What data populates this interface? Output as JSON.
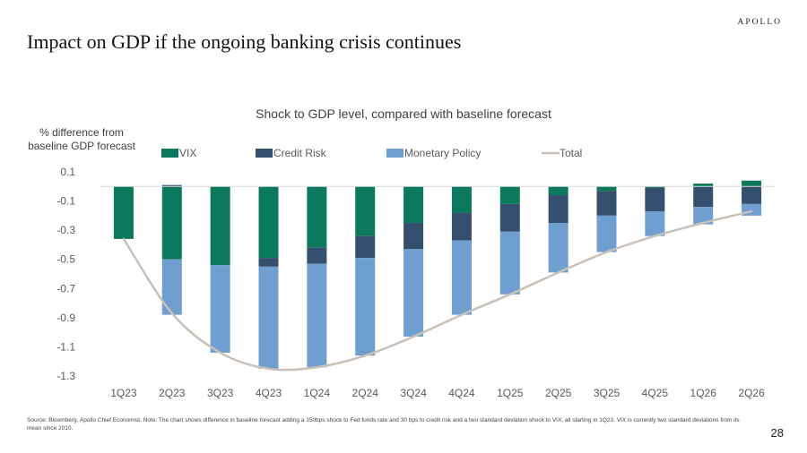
{
  "header": {
    "brand": "APOLLO",
    "title": "Impact on GDP if the ongoing banking crisis continues"
  },
  "footer": {
    "source": "Source: Bloomberg, Apollo Chief Economist. Note: The chart shows difference in baseline forecast adding a 150bps shock to Fed funds rate and 30 bps to credit risk and a two standard deviation shock to VIX, all starting in 1Q23. VIX is currently two standard deviations from its mean since 2010.",
    "page_number": "28"
  },
  "colors": {
    "vix": "#0b7a5c",
    "credit_risk": "#34506e",
    "monetary_policy": "#6f9fd1",
    "total": "#c9c0b7",
    "gridline": "#d9d9d9",
    "tick_text": "#595959"
  },
  "chart_data": {
    "type": "bar",
    "stacked": true,
    "title": "Shock to GDP level, compared with baseline forecast",
    "ylabel": "% difference from baseline GDP forecast",
    "xlabel": "",
    "ylim": [
      -1.3,
      0.1
    ],
    "yticks": [
      "0.1",
      "-0.1",
      "-0.3",
      "-0.5",
      "-0.7",
      "-0.9",
      "-1.1",
      "-1.3"
    ],
    "ytick_values": [
      0.1,
      -0.1,
      -0.3,
      -0.5,
      -0.7,
      -0.9,
      -1.1,
      -1.3
    ],
    "legend_position": "top",
    "grid": false,
    "categories": [
      "1Q23",
      "2Q23",
      "3Q23",
      "4Q23",
      "1Q24",
      "2Q24",
      "3Q24",
      "4Q24",
      "1Q25",
      "2Q25",
      "3Q25",
      "4Q25",
      "1Q26",
      "2Q26"
    ],
    "series": [
      {
        "name": "VIX",
        "kind": "bar",
        "values": [
          -0.36,
          -0.5,
          -0.54,
          -0.49,
          -0.42,
          -0.34,
          -0.25,
          -0.18,
          -0.12,
          -0.06,
          -0.03,
          -0.01,
          0.02,
          0.04
        ]
      },
      {
        "name": "Credit Risk",
        "kind": "bar",
        "values": [
          0.0,
          0.01,
          0.0,
          -0.06,
          -0.11,
          -0.15,
          -0.18,
          -0.19,
          -0.19,
          -0.19,
          -0.17,
          -0.16,
          -0.14,
          -0.12
        ]
      },
      {
        "name": "Monetary Policy",
        "kind": "bar",
        "values": [
          0.0,
          -0.38,
          -0.6,
          -0.7,
          -0.71,
          -0.67,
          -0.6,
          -0.51,
          -0.43,
          -0.34,
          -0.25,
          -0.17,
          -0.12,
          -0.08
        ]
      },
      {
        "name": "Total",
        "kind": "line",
        "values": [
          -0.36,
          -0.87,
          -1.14,
          -1.25,
          -1.24,
          -1.16,
          -1.03,
          -0.88,
          -0.74,
          -0.59,
          -0.45,
          -0.34,
          -0.25,
          -0.17
        ]
      }
    ]
  }
}
